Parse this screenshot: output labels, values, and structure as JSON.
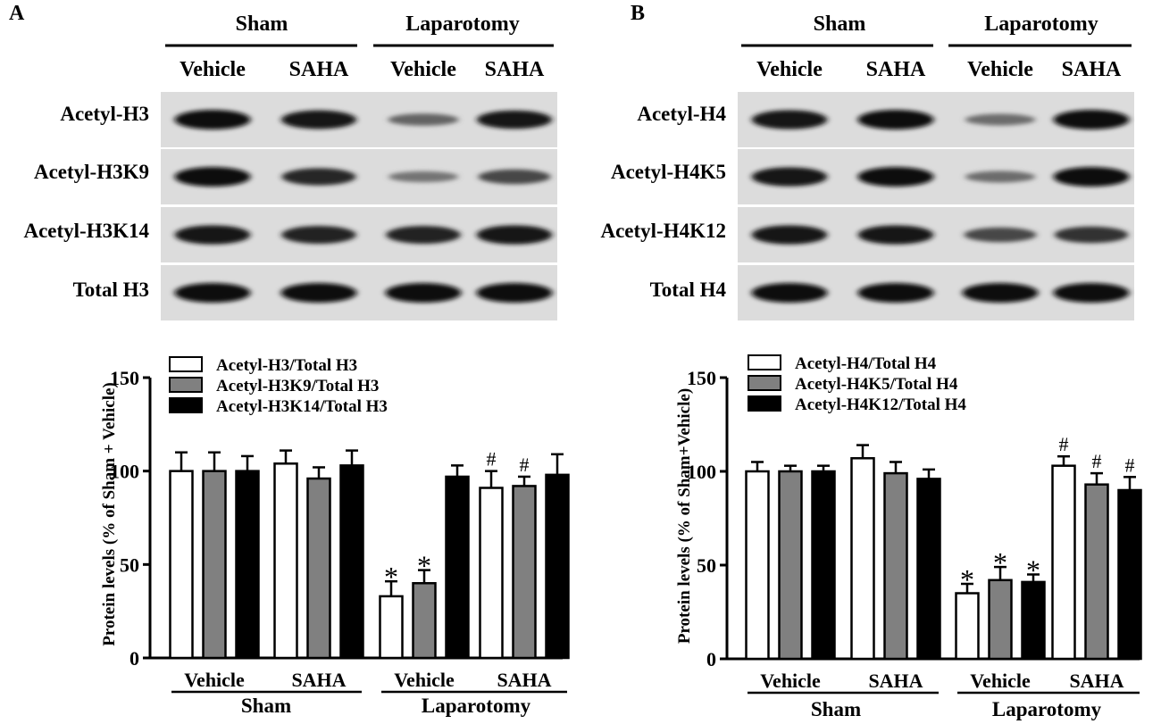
{
  "panels": [
    {
      "letter": "A",
      "blot": {
        "top_groups": [
          "Sham",
          "Laparotomy"
        ],
        "lanes": [
          "Vehicle",
          "SAHA",
          "Vehicle",
          "SAHA"
        ],
        "rows": [
          {
            "label": "Acetyl-H3",
            "intensities": [
              1.0,
              0.92,
              0.4,
              0.9
            ]
          },
          {
            "label": "Acetyl-H3K9",
            "intensities": [
              1.0,
              0.8,
              0.3,
              0.6
            ]
          },
          {
            "label": "Acetyl-H3K14",
            "intensities": [
              0.95,
              0.85,
              0.85,
              0.95
            ]
          },
          {
            "label": "Total H3",
            "intensities": [
              1.0,
              1.0,
              1.0,
              1.0
            ]
          }
        ]
      }
    },
    {
      "letter": "B",
      "blot": {
        "top_groups": [
          "Sham",
          "Laparotomy"
        ],
        "lanes": [
          "Vehicle",
          "SAHA",
          "Vehicle",
          "SAHA"
        ],
        "rows": [
          {
            "label": "Acetyl-H4",
            "intensities": [
              0.95,
              1.0,
              0.35,
              1.0
            ]
          },
          {
            "label": "Acetyl-H4K5",
            "intensities": [
              0.95,
              1.0,
              0.35,
              1.0
            ]
          },
          {
            "label": "Acetyl-H4K12",
            "intensities": [
              0.95,
              0.95,
              0.6,
              0.75
            ]
          },
          {
            "label": "Total H4",
            "intensities": [
              1.0,
              1.0,
              1.0,
              1.0
            ]
          }
        ]
      }
    }
  ],
  "chart_data": [
    {
      "type": "bar",
      "title": "",
      "xlabel": "",
      "ylabel": "Protein levels (% of Sham + Vehicle)",
      "ylim": [
        0,
        150
      ],
      "yticks": [
        0,
        50,
        100,
        150
      ],
      "categories": [
        "Vehicle",
        "SAHA",
        "Vehicle",
        "SAHA"
      ],
      "groups": [
        {
          "name": "Sham",
          "span": [
            0,
            1
          ]
        },
        {
          "name": "Laparotomy",
          "span": [
            2,
            3
          ]
        }
      ],
      "legend_position": "top-left",
      "series": [
        {
          "name": "Acetyl-H3/Total H3",
          "color": "#ffffff",
          "values": [
            100,
            104,
            33,
            91
          ],
          "errors": [
            10,
            7,
            8,
            9
          ],
          "marks": [
            "",
            "",
            "*",
            "#"
          ]
        },
        {
          "name": "Acetyl-H3K9/Total H3",
          "color": "#808080",
          "values": [
            100,
            96,
            40,
            92
          ],
          "errors": [
            10,
            6,
            7,
            5
          ],
          "marks": [
            "",
            "",
            "*",
            "#"
          ]
        },
        {
          "name": "Acetyl-H3K14/Total H3",
          "color": "#000000",
          "values": [
            100,
            103,
            97,
            98
          ],
          "errors": [
            8,
            8,
            6,
            11
          ],
          "marks": [
            "",
            "",
            "",
            ""
          ]
        }
      ]
    },
    {
      "type": "bar",
      "title": "",
      "xlabel": "",
      "ylabel": "Protein levels (% of Sham+Vehicle)",
      "ylim": [
        0,
        150
      ],
      "yticks": [
        0,
        50,
        100,
        150
      ],
      "categories": [
        "Vehicle",
        "SAHA",
        "Vehicle",
        "SAHA"
      ],
      "groups": [
        {
          "name": "Sham",
          "span": [
            0,
            1
          ]
        },
        {
          "name": "Laparotomy",
          "span": [
            2,
            3
          ]
        }
      ],
      "legend_position": "top-left",
      "series": [
        {
          "name": "Acetyl-H4/Total H4",
          "color": "#ffffff",
          "values": [
            100,
            107,
            35,
            103
          ],
          "errors": [
            5,
            7,
            5,
            5
          ],
          "marks": [
            "",
            "",
            "*",
            "#"
          ]
        },
        {
          "name": "Acetyl-H4K5/Total H4",
          "color": "#808080",
          "values": [
            100,
            99,
            42,
            93
          ],
          "errors": [
            3,
            6,
            7,
            6
          ],
          "marks": [
            "",
            "",
            "*",
            "#"
          ]
        },
        {
          "name": "Acetyl-H4K12/Total H4",
          "color": "#000000",
          "values": [
            100,
            96,
            41,
            90
          ],
          "errors": [
            3,
            5,
            4,
            7
          ],
          "marks": [
            "",
            "",
            "*",
            "#"
          ]
        }
      ]
    }
  ]
}
